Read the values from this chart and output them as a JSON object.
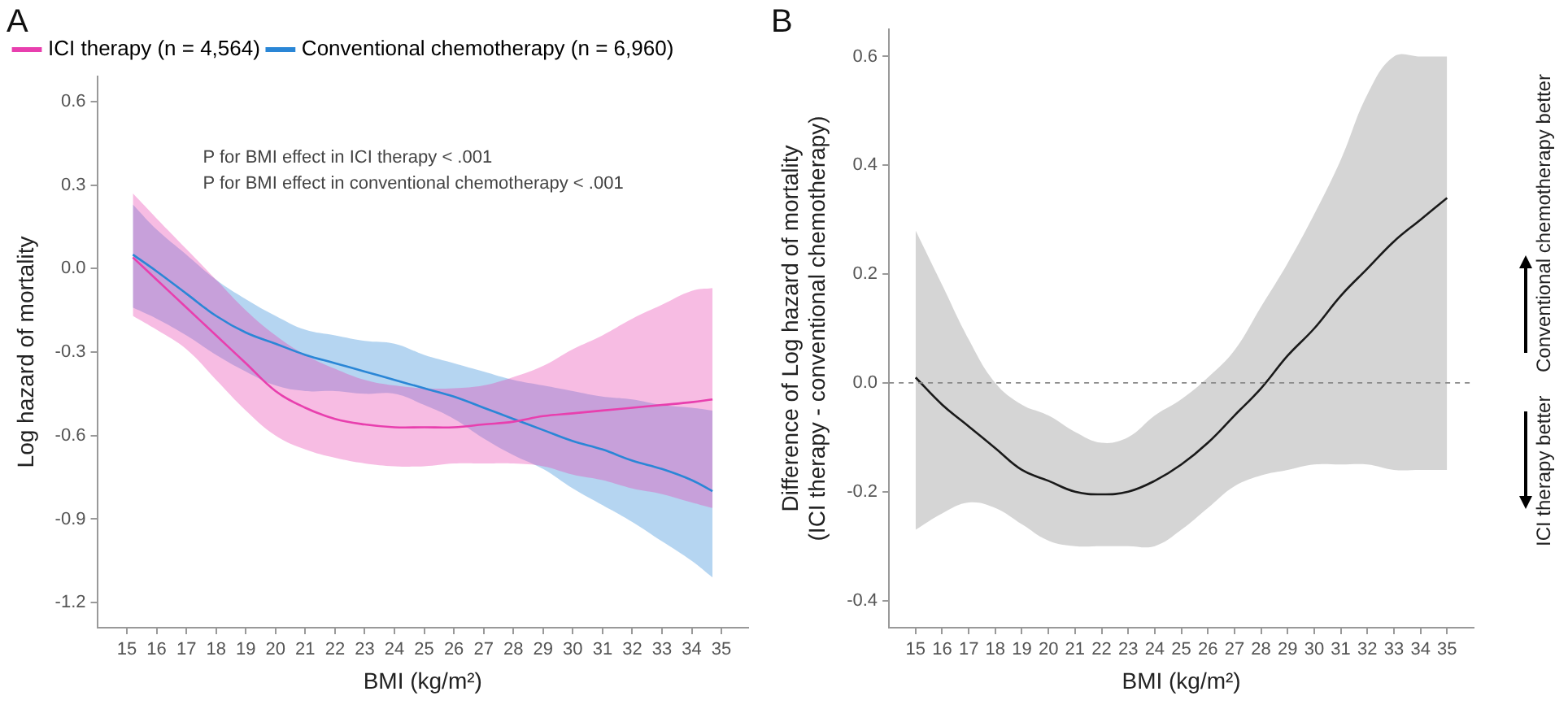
{
  "chart_data": [
    {
      "type": "line",
      "title": "A",
      "xlabel": "BMI (kg/m²)",
      "ylabel": "Log hazard of mortality",
      "legend": "top left",
      "grid": false,
      "marker": "none",
      "line_style": "solid",
      "xlim": [
        14,
        35.9
      ],
      "xticks": [
        15,
        16,
        17,
        18,
        19,
        20,
        21,
        22,
        23,
        24,
        25,
        26,
        27,
        28,
        29,
        30,
        31,
        32,
        33,
        34,
        35
      ],
      "ylim": [
        -1.29,
        0.69
      ],
      "yticks": [
        0.6,
        0.3,
        {
          "value": 0,
          "label": "0.0"
        },
        -0.3,
        -0.6,
        -0.9,
        -1.2
      ],
      "x": [
        15.2,
        16,
        17,
        18,
        19,
        20,
        21,
        22,
        23,
        24,
        25,
        26,
        27,
        28,
        29,
        30,
        31,
        32,
        33,
        34,
        34.7
      ],
      "series": [
        {
          "name": "ICI therapy (n = 4,564)",
          "color": "#e83fae",
          "values": [
            0.04,
            -0.04,
            -0.14,
            -0.24,
            -0.34,
            -0.44,
            -0.5,
            -0.54,
            -0.56,
            -0.57,
            -0.57,
            -0.57,
            -0.56,
            -0.55,
            -0.53,
            -0.52,
            -0.51,
            -0.5,
            -0.49,
            -0.48,
            -0.47
          ],
          "upper": [
            0.27,
            0.18,
            0.07,
            -0.04,
            -0.15,
            -0.24,
            -0.31,
            -0.36,
            -0.4,
            -0.42,
            -0.43,
            -0.43,
            -0.42,
            -0.39,
            -0.35,
            -0.29,
            -0.24,
            -0.18,
            -0.13,
            -0.08,
            -0.07
          ],
          "lower": [
            -0.17,
            -0.22,
            -0.29,
            -0.4,
            -0.51,
            -0.6,
            -0.65,
            -0.68,
            -0.7,
            -0.71,
            -0.71,
            -0.7,
            -0.7,
            -0.7,
            -0.71,
            -0.74,
            -0.76,
            -0.79,
            -0.81,
            -0.84,
            -0.86
          ]
        },
        {
          "name": "Conventional chemotherapy (n = 6,960)",
          "color": "#2a86d6",
          "values": [
            0.05,
            -0.01,
            -0.09,
            -0.17,
            -0.23,
            -0.27,
            -0.31,
            -0.34,
            -0.37,
            -0.4,
            -0.43,
            -0.46,
            -0.5,
            -0.54,
            -0.58,
            -0.62,
            -0.65,
            -0.69,
            -0.72,
            -0.76,
            -0.8
          ],
          "upper": [
            0.23,
            0.14,
            0.05,
            -0.04,
            -0.11,
            -0.17,
            -0.22,
            -0.24,
            -0.26,
            -0.27,
            -0.31,
            -0.34,
            -0.37,
            -0.4,
            -0.42,
            -0.44,
            -0.46,
            -0.47,
            -0.49,
            -0.5,
            -0.51
          ],
          "lower": [
            -0.14,
            -0.18,
            -0.24,
            -0.31,
            -0.37,
            -0.42,
            -0.44,
            -0.44,
            -0.45,
            -0.45,
            -0.49,
            -0.54,
            -0.61,
            -0.67,
            -0.72,
            -0.79,
            -0.85,
            -0.91,
            -0.98,
            -1.05,
            -1.11
          ]
        }
      ],
      "annotations": [
        "P for BMI effect in ICI therapy < .001",
        "P for BMI effect in conventional chemotherapy < .001"
      ]
    },
    {
      "type": "line",
      "title": "B",
      "xlabel": "BMI (kg/m²)",
      "ylabel": "Difference of Log hazard of mortality\n(ICI therapy - conventional chemotherapy)",
      "legend": false,
      "grid": false,
      "marker": "none",
      "line_style": "solid",
      "xlim": [
        14,
        36
      ],
      "xticks": [
        15,
        16,
        17,
        18,
        19,
        20,
        21,
        22,
        23,
        24,
        25,
        26,
        27,
        28,
        29,
        30,
        31,
        32,
        33,
        34,
        35
      ],
      "ylim": [
        -0.45,
        0.65
      ],
      "yticks": [
        0.6,
        0.4,
        0.2,
        {
          "value": 0,
          "label": "0.0"
        },
        -0.2,
        -0.4
      ],
      "x": [
        15,
        16,
        17,
        18,
        19,
        20,
        21,
        22,
        23,
        24,
        25,
        26,
        27,
        28,
        29,
        30,
        31,
        32,
        33,
        34,
        35
      ],
      "series": [
        {
          "color": "#1a1a1a",
          "values": [
            0.01,
            -0.04,
            -0.08,
            -0.12,
            -0.16,
            -0.18,
            -0.2,
            -0.205,
            -0.2,
            -0.18,
            -0.15,
            -0.11,
            -0.06,
            -0.01,
            0.05,
            0.1,
            0.16,
            0.21,
            0.26,
            0.3,
            0.34
          ],
          "upper": [
            0.28,
            0.18,
            0.08,
            0.0,
            -0.04,
            -0.06,
            -0.09,
            -0.11,
            -0.1,
            -0.06,
            -0.03,
            0.01,
            0.06,
            0.14,
            0.22,
            0.31,
            0.41,
            0.53,
            0.6,
            0.6,
            0.6
          ],
          "lower": [
            -0.27,
            -0.24,
            -0.22,
            -0.23,
            -0.26,
            -0.29,
            -0.3,
            -0.3,
            -0.3,
            -0.3,
            -0.27,
            -0.23,
            -0.19,
            -0.17,
            -0.16,
            -0.15,
            -0.15,
            -0.15,
            -0.16,
            -0.16,
            -0.16
          ]
        }
      ],
      "ref_lines": [
        {
          "axis": "y",
          "value": 0,
          "color": "#888888",
          "line_style": "dashed"
        }
      ],
      "annotations": [
        "Conventional chemotherapy better",
        "ICI therapy better"
      ]
    }
  ]
}
